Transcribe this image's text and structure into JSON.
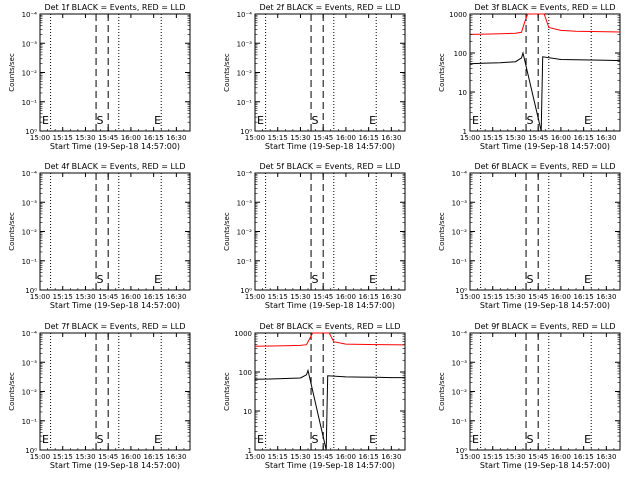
{
  "colors": {
    "events": "#000000",
    "lld": "#ff0000"
  },
  "x_axis_title": "Start Time (19-Sep-18 14:57:00)",
  "x_ticks": [
    "15:00",
    "15:15",
    "15:30",
    "15:45",
    "16:00",
    "16:15",
    "16:30"
  ],
  "log_tick_labels": [
    "10⁰",
    "10⁻¹",
    "10⁻²",
    "10⁻³",
    "10⁻⁴"
  ],
  "linear_tick_labels": [
    "1",
    "10",
    "100",
    "1000"
  ],
  "marker_labels": {
    "start": "S",
    "end": "E"
  },
  "chart_data": [
    {
      "type": "line",
      "title": "Det 1f BLACK = Events, RED = LLD",
      "xlabel": "Start Time (19-Sep-18 14:57:00)",
      "ylabel": "Counts/sec",
      "ylim": [
        1,
        0.0001
      ],
      "y_scale": "log",
      "x_range": [
        "15:00",
        "16:39"
      ],
      "dashed_lines": [
        "15:37",
        "15:45"
      ],
      "dotted_lines": [
        "15:07",
        "15:52",
        "16:20"
      ],
      "markers": [
        {
          "label": "E",
          "x": "15:00"
        },
        {
          "label": "S",
          "x": "15:36"
        },
        {
          "label": "E",
          "x": "16:14"
        }
      ],
      "series": []
    },
    {
      "type": "line",
      "title": "Det 2f BLACK = Events, RED = LLD",
      "xlabel": "Start Time (19-Sep-18 14:57:00)",
      "ylabel": "Counts/sec",
      "ylim": [
        1,
        0.0001
      ],
      "y_scale": "log",
      "x_range": [
        "15:00",
        "16:39"
      ],
      "dashed_lines": [
        "15:37",
        "15:45"
      ],
      "dotted_lines": [
        "15:07",
        "15:52",
        "16:20"
      ],
      "markers": [
        {
          "label": "E",
          "x": "15:00"
        },
        {
          "label": "S",
          "x": "15:36"
        },
        {
          "label": "E",
          "x": "16:14"
        }
      ],
      "series": []
    },
    {
      "type": "line",
      "title": "Det 3f BLACK = Events, RED = LLD",
      "xlabel": "Start Time (19-Sep-18 14:57:00)",
      "ylabel": "Counts/sec",
      "ylim": [
        1,
        1000
      ],
      "y_scale": "log",
      "x_range": [
        "15:00",
        "16:39"
      ],
      "dashed_lines": [
        "15:37",
        "15:45"
      ],
      "dotted_lines": [
        "15:07",
        "15:52",
        "16:20"
      ],
      "markers": [
        {
          "label": "E",
          "x": "15:00"
        },
        {
          "label": "S",
          "x": "15:36"
        },
        {
          "label": "E",
          "x": "16:14"
        }
      ],
      "series": [
        {
          "color": "#ff0000",
          "x": [
            "15:00",
            "15:10",
            "15:20",
            "15:30",
            "15:34",
            "15:36",
            "15:38",
            "15:41",
            "15:44",
            "15:47",
            "15:49",
            "15:52",
            "16:00",
            "16:10",
            "16:20",
            "16:30",
            "16:39"
          ],
          "values": [
            300,
            305,
            310,
            320,
            340,
            600,
            1000,
            1000,
            1000,
            1000,
            1000,
            450,
            380,
            360,
            355,
            350,
            345
          ]
        },
        {
          "color": "#000000",
          "x": [
            "15:00",
            "15:10",
            "15:20",
            "15:30",
            "15:34",
            "15:35",
            "15:47",
            "15:47",
            "15:48",
            "16:00",
            "16:10",
            "16:20",
            "16:30",
            "16:39"
          ],
          "values": [
            53,
            55,
            56,
            60,
            75,
            100,
            1,
            1,
            80,
            68,
            67,
            66,
            65,
            64
          ]
        }
      ]
    },
    {
      "type": "line",
      "title": "Det 4f BLACK = Events, RED = LLD",
      "xlabel": "Start Time (19-Sep-18 14:57:00)",
      "ylabel": "Counts/sec",
      "ylim": [
        1,
        0.0001
      ],
      "y_scale": "log",
      "x_range": [
        "15:00",
        "16:39"
      ],
      "dashed_lines": [
        "15:37",
        "15:45"
      ],
      "dotted_lines": [
        "15:07",
        "15:52",
        "16:20"
      ],
      "markers": [
        {
          "label": "S",
          "x": "15:36"
        },
        {
          "label": "E",
          "x": "16:14"
        }
      ],
      "series": []
    },
    {
      "type": "line",
      "title": "Det 5f BLACK = Events, RED = LLD",
      "xlabel": "Start Time (19-Sep-18 14:57:00)",
      "ylabel": "Counts/sec",
      "ylim": [
        1,
        0.0001
      ],
      "y_scale": "log",
      "x_range": [
        "15:00",
        "16:39"
      ],
      "dashed_lines": [
        "15:37",
        "15:45"
      ],
      "dotted_lines": [
        "15:07",
        "15:52",
        "16:20"
      ],
      "markers": [
        {
          "label": "S",
          "x": "15:36"
        },
        {
          "label": "E",
          "x": "16:14"
        }
      ],
      "series": []
    },
    {
      "type": "line",
      "title": "Det 6f BLACK = Events, RED = LLD",
      "xlabel": "Start Time (19-Sep-18 14:57:00)",
      "ylabel": "Counts/sec",
      "ylim": [
        1,
        0.0001
      ],
      "y_scale": "log",
      "x_range": [
        "15:00",
        "16:39"
      ],
      "dashed_lines": [
        "15:37",
        "15:45"
      ],
      "dotted_lines": [
        "15:07",
        "15:52",
        "16:20"
      ],
      "markers": [
        {
          "label": "S",
          "x": "15:36"
        },
        {
          "label": "E",
          "x": "16:14"
        }
      ],
      "series": []
    },
    {
      "type": "line",
      "title": "Det 7f BLACK = Events, RED = LLD",
      "xlabel": "Start Time (19-Sep-18 14:57:00)",
      "ylabel": "Counts/sec",
      "ylim": [
        1,
        0.0001
      ],
      "y_scale": "log",
      "x_range": [
        "15:00",
        "16:39"
      ],
      "dashed_lines": [
        "15:37",
        "15:45"
      ],
      "dotted_lines": [
        "15:07",
        "15:52",
        "16:20"
      ],
      "markers": [
        {
          "label": "E",
          "x": "15:00"
        },
        {
          "label": "S",
          "x": "15:36"
        },
        {
          "label": "E",
          "x": "16:14"
        }
      ],
      "series": []
    },
    {
      "type": "line",
      "title": "Det 8f BLACK = Events, RED = LLD",
      "xlabel": "Start Time (19-Sep-18 14:57:00)",
      "ylabel": "Counts/sec",
      "ylim": [
        1,
        1000
      ],
      "y_scale": "log",
      "x_range": [
        "15:00",
        "16:39"
      ],
      "dashed_lines": [
        "15:37",
        "15:45"
      ],
      "dotted_lines": [
        "15:07",
        "15:52",
        "16:20"
      ],
      "markers": [
        {
          "label": "E",
          "x": "15:00"
        },
        {
          "label": "S",
          "x": "15:36"
        },
        {
          "label": "E",
          "x": "16:14"
        }
      ],
      "series": [
        {
          "color": "#ff0000",
          "x": [
            "15:00",
            "15:10",
            "15:20",
            "15:30",
            "15:34",
            "15:36",
            "15:38",
            "15:41",
            "15:44",
            "15:47",
            "15:49",
            "15:52",
            "16:00",
            "16:10",
            "16:20",
            "16:30",
            "16:39"
          ],
          "values": [
            460,
            465,
            470,
            480,
            500,
            700,
            1000,
            1000,
            1000,
            1000,
            1000,
            600,
            520,
            510,
            505,
            500,
            495
          ]
        },
        {
          "color": "#000000",
          "x": [
            "15:00",
            "15:10",
            "15:20",
            "15:30",
            "15:34",
            "15:35",
            "15:47",
            "15:47",
            "15:48",
            "16:00",
            "16:10",
            "16:20",
            "16:30",
            "16:39"
          ],
          "values": [
            65,
            66,
            68,
            70,
            85,
            110,
            1,
            1,
            80,
            75,
            74,
            73,
            72,
            72
          ]
        }
      ]
    },
    {
      "type": "line",
      "title": "Det 9f BLACK = Events, RED = LLD",
      "xlabel": "Start Time (19-Sep-18 14:57:00)",
      "ylabel": "Counts/sec",
      "ylim": [
        1,
        0.0001
      ],
      "y_scale": "log",
      "x_range": [
        "15:00",
        "16:39"
      ],
      "dashed_lines": [
        "15:37",
        "15:45"
      ],
      "dotted_lines": [
        "15:07",
        "15:52",
        "16:20"
      ],
      "markers": [
        {
          "label": "E",
          "x": "15:00"
        },
        {
          "label": "S",
          "x": "15:36"
        },
        {
          "label": "E",
          "x": "16:14"
        }
      ],
      "series": []
    }
  ]
}
